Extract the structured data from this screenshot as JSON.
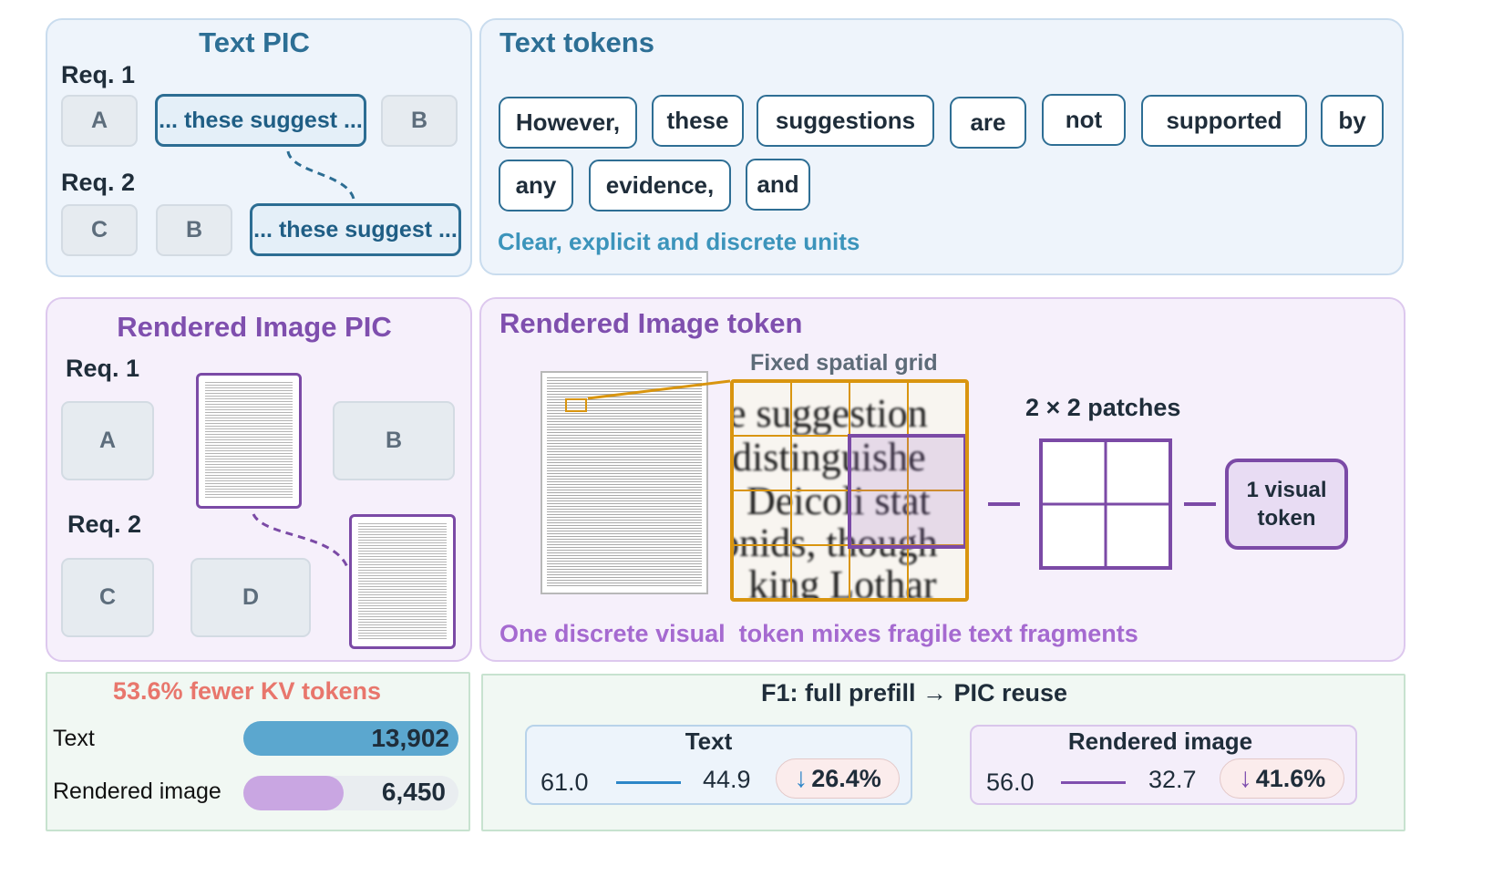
{
  "text_pic": {
    "title": "Text PIC",
    "req1_label": "Req. 1",
    "req2_label": "Req. 2",
    "req1_boxes": [
      "A",
      "... these suggest ...",
      "B"
    ],
    "req2_boxes": [
      "C",
      "B",
      "... these suggest ..."
    ]
  },
  "text_tokens": {
    "title": "Text tokens",
    "tokens": [
      "However,",
      "these",
      "suggestions",
      "are",
      "not",
      "supported",
      "by",
      "any",
      "evidence,",
      "and"
    ],
    "caption": "Clear, explicit and discrete units"
  },
  "image_pic": {
    "title": "Rendered Image PIC",
    "req1_label": "Req. 1",
    "req2_label": "Req. 2",
    "req1_boxes": [
      "A",
      "B"
    ],
    "req2_boxes": [
      "C",
      "D"
    ]
  },
  "image_token": {
    "title": "Rendered Image token",
    "grid_label": "Fixed spatial grid",
    "grid_rows": [
      "e suggestion",
      "distinguishe",
      "Deicoli stat",
      "onids, though",
      "king Lothar"
    ],
    "patches_label": "2 × 2 patches",
    "visual_token_label": "1 visual token",
    "caption": "One discrete visual  token mixes fragile text fragments"
  },
  "kv": {
    "title": "53.6% fewer KV tokens",
    "rows": [
      {
        "label": "Text",
        "value": "13,902",
        "fraction": 1.0,
        "color": "#5ba7cf"
      },
      {
        "label": "Rendered image",
        "value": "6,450",
        "fraction": 0.464,
        "color": "#c9a6e2"
      }
    ]
  },
  "f1": {
    "title": "F1: full prefill → PIC reuse",
    "text": {
      "label": "Text",
      "from": "61.0",
      "to": "44.9",
      "drop": "26.4%",
      "arrow_color": "#2d86c8"
    },
    "image": {
      "label": "Rendered image",
      "from": "56.0",
      "to": "32.7",
      "drop": "41.6%",
      "arrow_color": "#7f4fae"
    }
  },
  "colors": {
    "blue": "#2d6f95",
    "purple": "#7f4fae",
    "orange": "#d9950f",
    "red": "#e8766c"
  }
}
